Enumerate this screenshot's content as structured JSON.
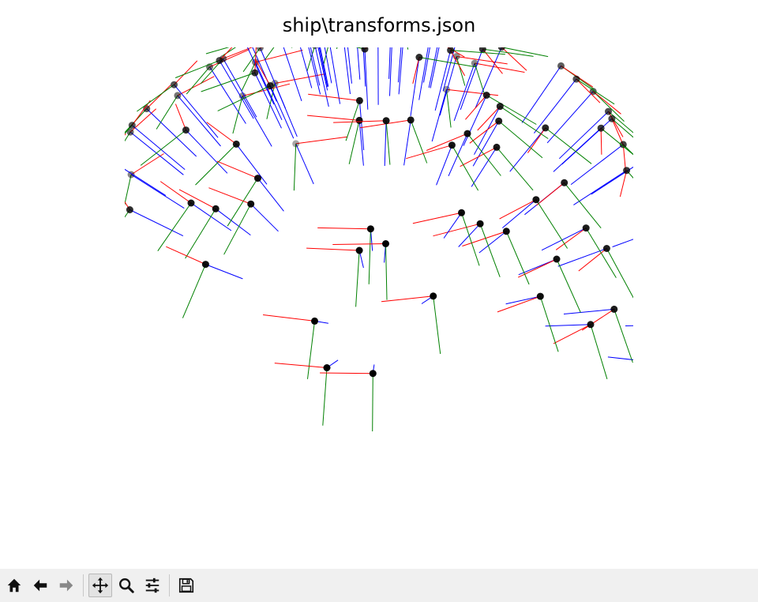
{
  "window": {
    "title": "ship\\transforms.json"
  },
  "chart_data": {
    "type": "3d-camera-poses",
    "title": "ship\\transforms.json",
    "legend": "none",
    "grid": false,
    "axes_visible": false,
    "colors": {
      "x_axis": "#ff0000",
      "y_axis": "#008000",
      "z_axis": "#0000ff",
      "camera_center": "#000000"
    },
    "camera_count": 100,
    "view": {
      "elev": 30,
      "azim": 45
    }
  },
  "toolbar": {
    "buttons": [
      {
        "name": "home-button",
        "icon": "home-icon",
        "tooltip": "Reset original view"
      },
      {
        "name": "back-button",
        "icon": "back-arrow-icon",
        "tooltip": "Back to previous view"
      },
      {
        "name": "forward-button",
        "icon": "forward-arrow-icon",
        "tooltip": "Forward to next view"
      },
      {
        "name": "pan-button",
        "icon": "move-icon",
        "tooltip": "Pan axes"
      },
      {
        "name": "zoom-button",
        "icon": "magnifier-icon",
        "tooltip": "Zoom to rectangle"
      },
      {
        "name": "configure-button",
        "icon": "sliders-icon",
        "tooltip": "Configure subplots"
      },
      {
        "name": "save-button",
        "icon": "floppy-icon",
        "tooltip": "Save the figure"
      }
    ]
  }
}
